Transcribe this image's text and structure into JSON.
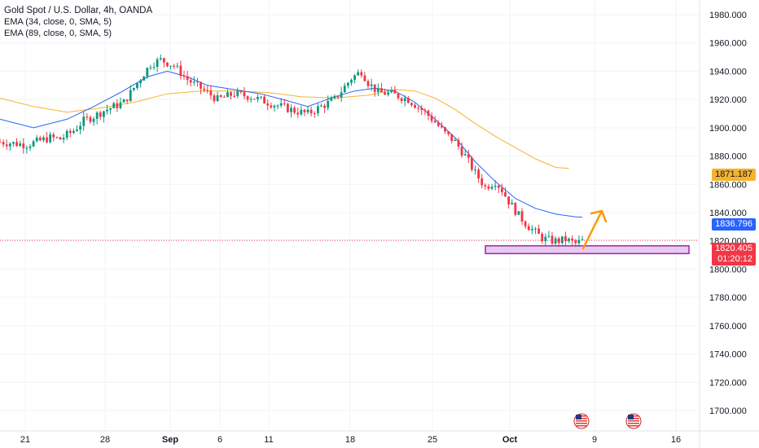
{
  "legend": {
    "title": "Gold Spot / U.S. Dollar, 4h, OANDA",
    "ema1": "EMA (34, close, 0, SMA, 5)",
    "ema2": "EMA (89, close, 0, SMA, 5)"
  },
  "price_labels": {
    "ema89": "1871.187",
    "ema34": "1836.796",
    "last_price": "1820.405",
    "countdown": "01:20:12"
  },
  "colors": {
    "up": "#089981",
    "down": "#f23645",
    "ema34": "#2962ff",
    "ema89": "#f5b32e",
    "ema89_label": "#f5b32e",
    "ema34_label": "#2962ff",
    "last_label": "#f23645",
    "support_zone": "#9c27b0",
    "arrow": "#ff9800",
    "grid": "#f0f3fa",
    "axis_text": "#131722"
  },
  "icons": [
    "us-flag-event-icon",
    "us-flag-event-icon"
  ],
  "chart_data": {
    "type": "line",
    "title": "Gold Spot / U.S. Dollar, 4h, OANDA",
    "x_ticks": [
      "21",
      "28",
      "Sep",
      "6",
      "11",
      "18",
      "25",
      "Oct",
      "9",
      "16"
    ],
    "y_ticks": [
      "1980.000",
      "1960.000",
      "1940.000",
      "1920.000",
      "1900.000",
      "1880.000",
      "1860.000",
      "1840.000",
      "1820.000",
      "1800.000",
      "1780.000",
      "1760.000",
      "1740.000",
      "1720.000",
      "1700.000"
    ],
    "ylim": [
      1697,
      1985
    ],
    "close_path": [
      [
        0,
        1890
      ],
      [
        8,
        1888
      ],
      [
        15,
        1893
      ],
      [
        18,
        1892
      ],
      [
        22,
        1898
      ],
      [
        25,
        1905
      ],
      [
        28,
        1908
      ],
      [
        31,
        1912
      ],
      [
        34,
        1915
      ],
      [
        37,
        1918
      ],
      [
        42,
        1935
      ],
      [
        45,
        1945
      ],
      [
        48,
        1948
      ],
      [
        52,
        1944
      ],
      [
        56,
        1934
      ],
      [
        60,
        1928
      ],
      [
        65,
        1920
      ],
      [
        70,
        1924
      ],
      [
        75,
        1922
      ],
      [
        80,
        1918
      ],
      [
        84,
        1915
      ],
      [
        88,
        1912
      ],
      [
        92,
        1910
      ],
      [
        96,
        1915
      ],
      [
        100,
        1920
      ],
      [
        105,
        1935
      ],
      [
        108,
        1940
      ],
      [
        110,
        1932
      ],
      [
        113,
        1925
      ],
      [
        117,
        1924
      ],
      [
        122,
        1920
      ],
      [
        127,
        1911
      ],
      [
        130,
        1904
      ],
      [
        133,
        1896
      ],
      [
        136,
        1890
      ],
      [
        139,
        1880
      ],
      [
        142,
        1868
      ],
      [
        145,
        1858
      ],
      [
        148,
        1862
      ],
      [
        150,
        1856
      ],
      [
        152,
        1848
      ],
      [
        155,
        1838
      ],
      [
        158,
        1830
      ],
      [
        162,
        1822
      ],
      [
        165,
        1820
      ],
      [
        167,
        1820
      ],
      [
        169,
        1821
      ],
      [
        172,
        1818
      ],
      [
        174,
        1820
      ]
    ],
    "ema34": [
      [
        0,
        1906
      ],
      [
        10,
        1900
      ],
      [
        20,
        1906
      ],
      [
        28,
        1915
      ],
      [
        36,
        1925
      ],
      [
        44,
        1936
      ],
      [
        50,
        1940
      ],
      [
        56,
        1936
      ],
      [
        62,
        1930
      ],
      [
        70,
        1927
      ],
      [
        78,
        1924
      ],
      [
        86,
        1919
      ],
      [
        92,
        1915
      ],
      [
        100,
        1922
      ],
      [
        106,
        1926
      ],
      [
        112,
        1928
      ],
      [
        118,
        1926
      ],
      [
        124,
        1918
      ],
      [
        130,
        1906
      ],
      [
        136,
        1893
      ],
      [
        142,
        1876
      ],
      [
        148,
        1862
      ],
      [
        154,
        1850
      ],
      [
        160,
        1843
      ],
      [
        166,
        1839
      ],
      [
        172,
        1837
      ],
      [
        174,
        1836.8
      ]
    ],
    "ema89": [
      [
        0,
        1921
      ],
      [
        10,
        1915
      ],
      [
        20,
        1911
      ],
      [
        30,
        1914
      ],
      [
        40,
        1918
      ],
      [
        50,
        1924
      ],
      [
        60,
        1926
      ],
      [
        70,
        1926
      ],
      [
        80,
        1925
      ],
      [
        90,
        1922
      ],
      [
        100,
        1921
      ],
      [
        110,
        1923
      ],
      [
        118,
        1927
      ],
      [
        124,
        1926
      ],
      [
        130,
        1921
      ],
      [
        136,
        1913
      ],
      [
        142,
        1903
      ],
      [
        148,
        1894
      ],
      [
        154,
        1886
      ],
      [
        160,
        1878
      ],
      [
        166,
        1872
      ],
      [
        170,
        1871.2
      ]
    ],
    "current_price": 1820.405,
    "support_zone": [
      1811,
      1816.5
    ],
    "annotation": "upward arrow projection"
  }
}
